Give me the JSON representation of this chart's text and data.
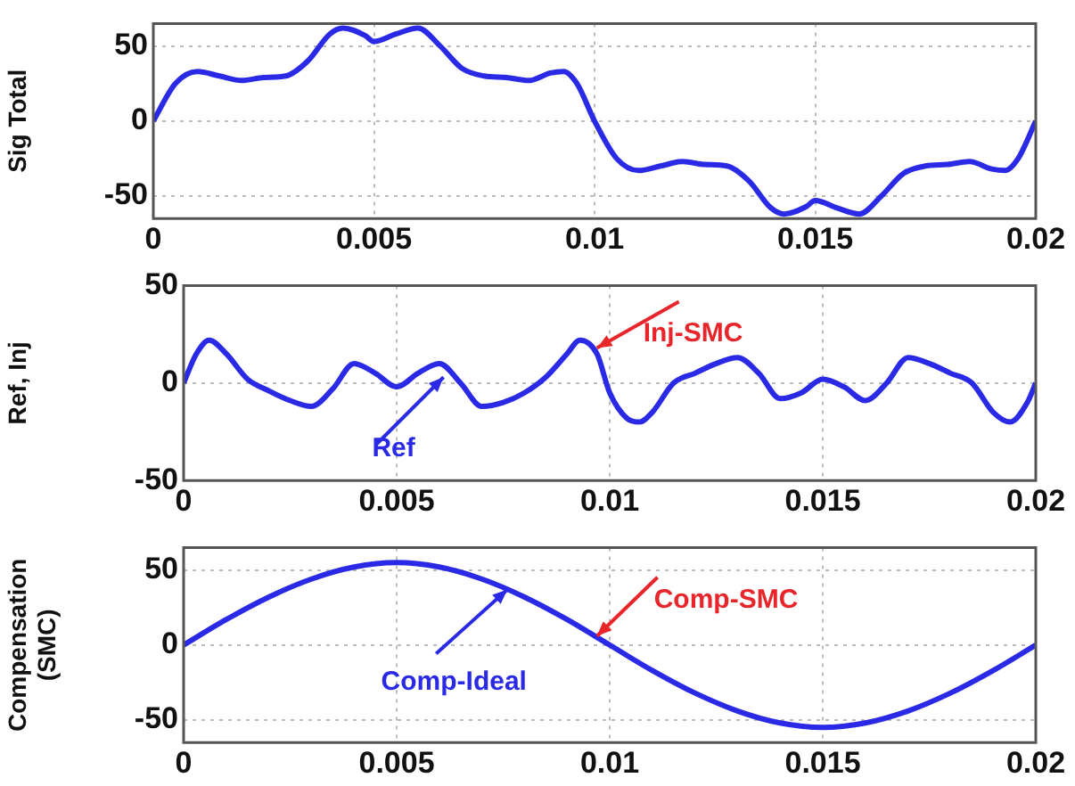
{
  "chart_data": [
    {
      "type": "line",
      "ylabel": "Sig Total",
      "xlim": [
        0,
        0.02
      ],
      "xticks": [
        0,
        0.005,
        0.01,
        0.015,
        0.02
      ],
      "ylim": [
        -65,
        65
      ],
      "yticks": [
        -50,
        0,
        50
      ],
      "grid": true,
      "legend": false,
      "marker": "none",
      "line_style": "solid",
      "x": [
        0,
        0.0005,
        0.001,
        0.0015,
        0.002,
        0.0025,
        0.003,
        0.0035,
        0.004,
        0.0043,
        0.0048,
        0.005,
        0.0055,
        0.006,
        0.0065,
        0.007,
        0.0075,
        0.008,
        0.0085,
        0.009,
        0.0093,
        0.0096,
        0.01,
        0.0105,
        0.011,
        0.0115,
        0.012,
        0.0125,
        0.013,
        0.0135,
        0.014,
        0.0143,
        0.0148,
        0.015,
        0.0155,
        0.016,
        0.0165,
        0.017,
        0.0175,
        0.018,
        0.0185,
        0.019,
        0.0193,
        0.0196,
        0.02
      ],
      "series": [
        {
          "color": "#2a2ae6",
          "values": [
            0,
            25,
            33,
            30,
            27,
            29,
            30,
            40,
            58,
            62,
            57,
            53,
            58,
            62,
            50,
            35,
            30,
            29,
            27,
            32,
            33,
            25,
            0,
            -25,
            -33,
            -30,
            -27,
            -29,
            -30,
            -40,
            -58,
            -62,
            -57,
            -53,
            -58,
            -62,
            -50,
            -35,
            -30,
            -29,
            -27,
            -32,
            -33,
            -25,
            0
          ]
        }
      ]
    },
    {
      "type": "line",
      "ylabel": "Ref, Inj",
      "xlim": [
        0,
        0.02
      ],
      "xticks": [
        0,
        0.005,
        0.01,
        0.015,
        0.02
      ],
      "ylim": [
        -50,
        50
      ],
      "yticks": [
        -50,
        0,
        50
      ],
      "grid": true,
      "legend": false,
      "marker": "none",
      "line_style": "solid",
      "x": [
        0,
        0.0003,
        0.0006,
        0.001,
        0.0015,
        0.002,
        0.0025,
        0.003,
        0.0035,
        0.004,
        0.0045,
        0.005,
        0.0055,
        0.006,
        0.0065,
        0.007,
        0.0075,
        0.008,
        0.0085,
        0.009,
        0.0093,
        0.0097,
        0.01,
        0.0104,
        0.0107,
        0.011,
        0.0115,
        0.012,
        0.0125,
        0.013,
        0.0135,
        0.014,
        0.0145,
        0.015,
        0.0155,
        0.016,
        0.0165,
        0.017,
        0.0175,
        0.018,
        0.0185,
        0.019,
        0.0194,
        0.0198,
        0.02
      ],
      "series": [
        {
          "color": "#2a2ae6",
          "values": [
            0,
            15,
            22,
            15,
            2,
            -4,
            -9,
            -12,
            -3,
            10,
            5,
            -2,
            5,
            10,
            0,
            -12,
            -10,
            -5,
            3,
            15,
            22,
            15,
            -5,
            -18,
            -20,
            -15,
            0,
            5,
            10,
            13,
            5,
            -8,
            -5,
            2,
            -2,
            -9,
            0,
            13,
            10,
            5,
            0,
            -15,
            -20,
            -10,
            0
          ]
        }
      ],
      "annotations": [
        {
          "text": "Inj-SMC",
          "x": 0.0097,
          "y": 18
        },
        {
          "text": "Ref",
          "x": 0.0061,
          "y": 3
        }
      ]
    },
    {
      "type": "line",
      "ylabel": "Compensation (SMC)",
      "xlim": [
        0,
        0.02
      ],
      "xticks": [
        0,
        0.005,
        0.01,
        0.015,
        0.02
      ],
      "ylim": [
        -65,
        65
      ],
      "yticks": [
        -50,
        0,
        50
      ],
      "grid": true,
      "legend": false,
      "marker": "none",
      "line_style": "solid",
      "x": [
        0,
        0.001,
        0.002,
        0.003,
        0.004,
        0.005,
        0.006,
        0.007,
        0.008,
        0.009,
        0.01,
        0.011,
        0.012,
        0.013,
        0.014,
        0.015,
        0.016,
        0.017,
        0.018,
        0.019,
        0.02
      ],
      "series": [
        {
          "color": "#2a2ae6",
          "values": [
            0,
            17,
            32,
            44,
            52,
            55,
            52,
            44,
            32,
            17,
            0,
            -17,
            -32,
            -44,
            -52,
            -55,
            -52,
            -44,
            -32,
            -17,
            0
          ]
        }
      ],
      "annotations": [
        {
          "text": "Comp-SMC",
          "x": 0.0097,
          "y": 6
        },
        {
          "text": "Comp-Ideal",
          "x": 0.0076,
          "y": 37
        }
      ]
    }
  ]
}
